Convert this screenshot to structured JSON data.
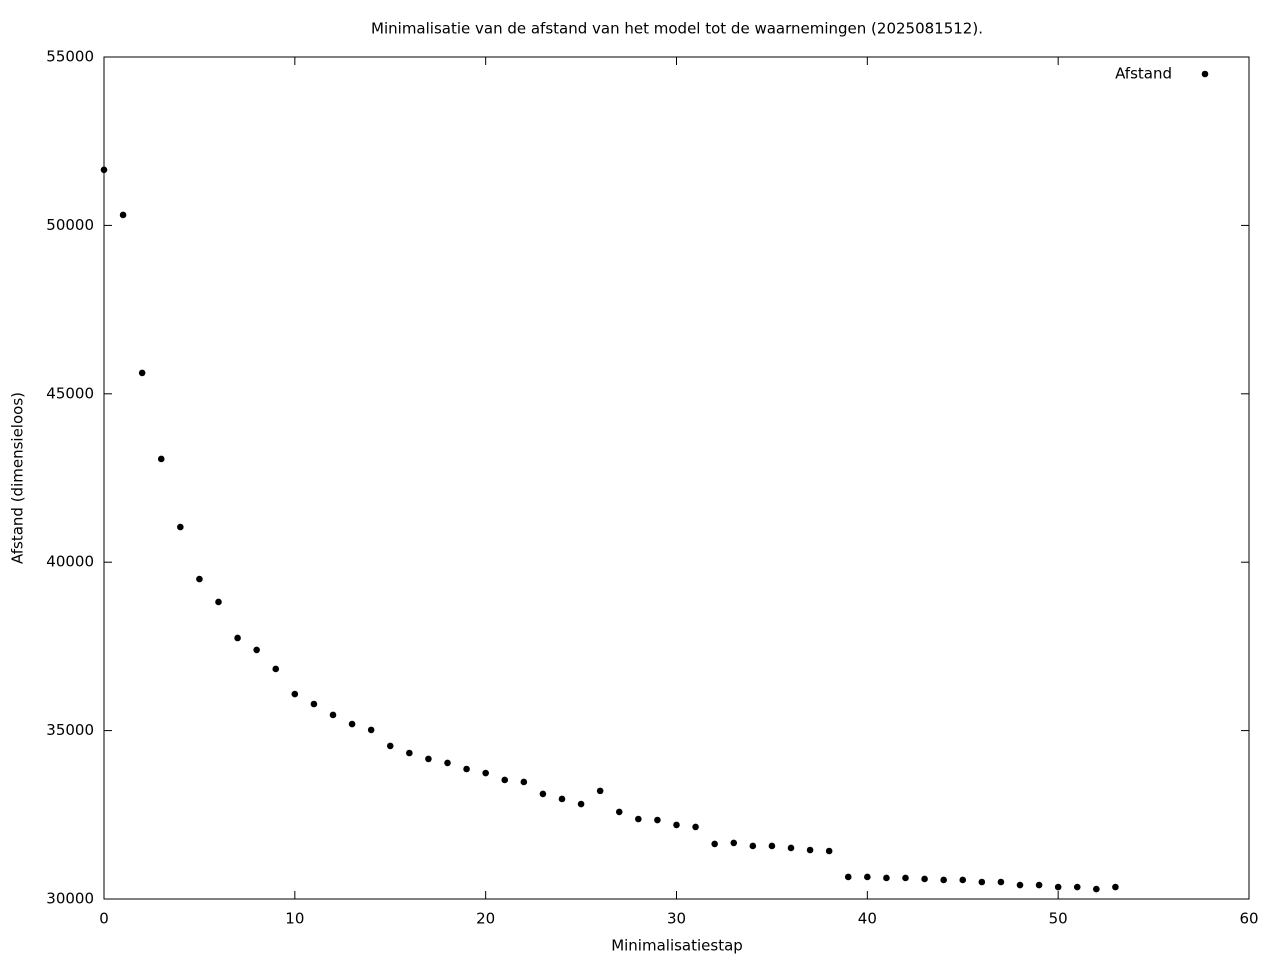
{
  "chart_data": {
    "type": "scatter",
    "title": "Minimalisatie van de afstand van het model tot de waarnemingen (2025081512).",
    "x_label": "Minimalisatiestap",
    "y_label": "Afstand (dimensieloos)",
    "xlim": [
      0,
      60
    ],
    "xticks": [
      0,
      10,
      20,
      30,
      40,
      50,
      60
    ],
    "ylim": [
      30000,
      55000
    ],
    "yticks": [
      30000,
      35000,
      40000,
      45000,
      50000,
      55000
    ],
    "legend": "upper right",
    "series": [
      {
        "name": "Afstand",
        "color": "#000000",
        "x": [
          0,
          1,
          2,
          3,
          4,
          5,
          6,
          7,
          8,
          9,
          10,
          11,
          12,
          13,
          14,
          15,
          16,
          17,
          18,
          19,
          20,
          21,
          22,
          23,
          24,
          25,
          26,
          27,
          28,
          29,
          30,
          31,
          32,
          33,
          34,
          35,
          36,
          37,
          38,
          39,
          40,
          41,
          42,
          43,
          44,
          45,
          46,
          47,
          48,
          49,
          50,
          51,
          52,
          53
        ],
        "values": [
          51650,
          50310,
          45620,
          43065,
          41045,
          39500,
          38820,
          37750,
          37395,
          36830,
          36085,
          35790,
          35465,
          35195,
          35020,
          34545,
          34335,
          34160,
          34040,
          33860,
          33740,
          33535,
          33475,
          33120,
          32970,
          32820,
          33210,
          32585,
          32375,
          32345,
          32200,
          32140,
          31635,
          31665,
          31575,
          31575,
          31515,
          31455,
          31425,
          30655,
          30655,
          30625,
          30625,
          30595,
          30565,
          30565,
          30505,
          30505,
          30415,
          30415,
          30355,
          30355,
          30295,
          30355
        ]
      }
    ]
  }
}
